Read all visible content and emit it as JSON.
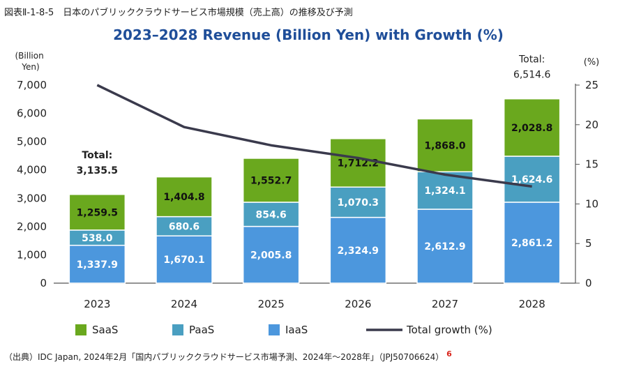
{
  "caption": "図表Ⅱ-1-8-5　日本のパブリッククラウドサービス市場規模（売上高）の推移及び予測",
  "source": "（出典）IDC Japan, 2024年2月「国内パブリッククラウドサービス市場予測、2024年～2028年」（JPJ50706624）",
  "source_ref": "6",
  "colors": {
    "saas": "#6aa81e",
    "paas": "#4a9fc1",
    "iaas": "#4c97dd",
    "growth": "#3a3a4c",
    "title": "#1f4e99",
    "axis": "#555555"
  },
  "chart_data": {
    "type": "bar",
    "stacked": true,
    "title": "2023–2028 Revenue (Billion Yen) with Growth (%)",
    "ylabel": "(Billion Yen)",
    "y2label": "(%)",
    "ylim": [
      0,
      7000
    ],
    "y2lim": [
      0,
      25
    ],
    "yticks": [
      "0",
      "1,000",
      "2,000",
      "3,000",
      "4,000",
      "5,000",
      "6,000",
      "7,000"
    ],
    "y2ticks": [
      "0",
      "5",
      "10",
      "15",
      "20",
      "25"
    ],
    "categories": [
      "2023",
      "2024",
      "2025",
      "2026",
      "2027",
      "2028"
    ],
    "series": [
      {
        "name": "IaaS",
        "key": "iaas",
        "values": [
          1337.9,
          1670.1,
          2005.8,
          2324.9,
          2612.9,
          2861.2
        ],
        "labels": [
          "1,337.9",
          "1,670.1",
          "2,005.8",
          "2,324.9",
          "2,612.9",
          "2,861.2"
        ]
      },
      {
        "name": "PaaS",
        "key": "paas",
        "values": [
          538.0,
          680.6,
          854.6,
          1070.3,
          1324.1,
          1624.6
        ],
        "labels": [
          "538.0",
          "680.6",
          "854.6",
          "1,070.3",
          "1,324.1",
          "1,624.6"
        ]
      },
      {
        "name": "SaaS",
        "key": "saas",
        "values": [
          1259.5,
          1404.8,
          1552.7,
          1712.2,
          1868.0,
          2028.8
        ],
        "labels": [
          "1,259.5",
          "1,404.8",
          "1,552.7",
          "1,712.2",
          "1,868.0",
          "2,028.8"
        ]
      }
    ],
    "totals": [
      {
        "category": "2023",
        "label": "Total:",
        "value": "3,135.5"
      },
      {
        "category": "2028",
        "label": "Total:",
        "value": "6,514.6"
      }
    ],
    "growth": {
      "name": "Total growth (%)",
      "values": [
        25.0,
        19.7,
        17.4,
        15.8,
        13.7,
        12.2
      ]
    },
    "legend": [
      {
        "name": "SaaS",
        "key": "saas",
        "kind": "box"
      },
      {
        "name": "PaaS",
        "key": "paas",
        "kind": "box"
      },
      {
        "name": "IaaS",
        "key": "iaas",
        "kind": "box"
      },
      {
        "name": "Total growth (%)",
        "key": "growth",
        "kind": "line"
      }
    ],
    "legend_position": "bottom",
    "grid": false
  }
}
